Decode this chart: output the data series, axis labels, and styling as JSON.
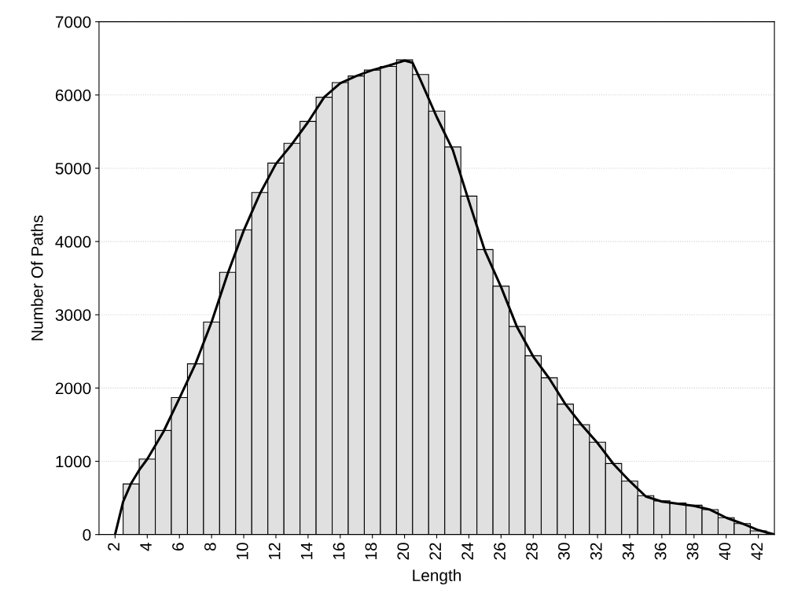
{
  "chart_data": {
    "type": "histogram",
    "xlabel": "Length",
    "ylabel": "Number Of Paths",
    "xlim": [
      1,
      43
    ],
    "xticks": [
      2,
      4,
      6,
      8,
      10,
      12,
      14,
      16,
      18,
      20,
      22,
      24,
      26,
      28,
      30,
      32,
      34,
      36,
      38,
      40,
      42
    ],
    "ylim": [
      0,
      7000
    ],
    "yticks": [
      0,
      1000,
      2000,
      3000,
      4000,
      5000,
      6000,
      7000
    ],
    "grid": "y",
    "legend": false,
    "series": [
      {
        "color": "#e0e0e0",
        "bins": [
          2.5,
          3.5,
          4.5,
          5.5,
          6.5,
          7.5,
          8.5,
          9.5,
          10.5,
          11.5,
          12.5,
          13.5,
          14.5,
          15.5,
          16.5,
          17.5,
          18.5,
          19.5,
          20.5,
          21.5,
          22.5,
          23.5,
          24.5,
          25.5,
          26.5,
          27.5,
          28.5,
          29.5,
          30.5,
          31.5,
          32.5,
          33.5,
          34.5,
          35.5,
          36.5,
          37.5,
          38.5,
          39.5,
          40.5,
          41.5,
          42.5
        ],
        "values": [
          690,
          1030,
          1420,
          1870,
          2330,
          2900,
          3580,
          4160,
          4670,
          5070,
          5340,
          5640,
          5970,
          6170,
          6260,
          6340,
          6390,
          6480,
          6280,
          5780,
          5290,
          4620,
          3890,
          3390,
          2840,
          2440,
          2140,
          1780,
          1500,
          1260,
          970,
          730,
          530,
          460,
          430,
          400,
          340,
          230,
          150,
          50
        ]
      },
      {
        "type": "line",
        "color": "#000000",
        "line_style": "solid",
        "x": [
          2,
          2.5,
          3,
          3.5,
          4,
          5,
          6,
          7,
          8,
          9,
          10,
          11,
          12,
          13,
          14,
          15,
          16,
          17,
          18,
          19,
          20,
          20.5,
          21,
          22,
          23,
          24,
          25,
          26,
          27,
          28,
          29,
          30,
          31,
          32,
          33,
          34,
          35,
          36,
          37,
          38,
          39,
          40,
          41,
          42,
          43
        ],
        "values": [
          0,
          450,
          700,
          880,
          1030,
          1400,
          1860,
          2330,
          2900,
          3560,
          4150,
          4650,
          5060,
          5330,
          5630,
          5970,
          6160,
          6260,
          6340,
          6400,
          6470,
          6440,
          6200,
          5700,
          5250,
          4550,
          3870,
          3380,
          2830,
          2430,
          2130,
          1780,
          1500,
          1250,
          960,
          730,
          520,
          450,
          420,
          390,
          340,
          230,
          150,
          60,
          0
        ]
      }
    ]
  }
}
